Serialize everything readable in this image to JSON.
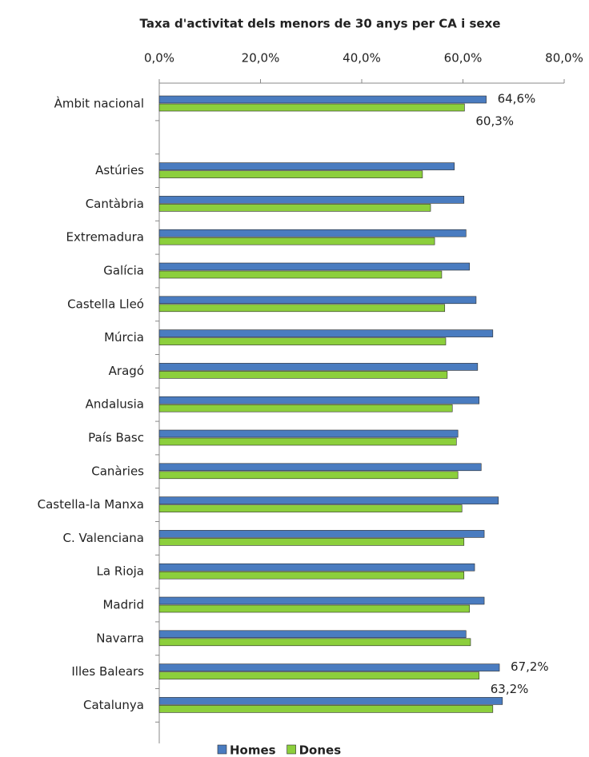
{
  "chart_data": {
    "type": "bar",
    "orientation": "horizontal",
    "title": "Taxa d'activitat dels menors de 30 anys per CA i sexe",
    "categories": [
      "Àmbit nacional",
      null,
      "Astúries",
      "Cantàbria",
      "Extremadura",
      "Galícia",
      "Castella Lleó",
      "Múrcia",
      "Aragó",
      "Andalusia",
      "País Basc",
      "Canàries",
      "Castella-la Manxa",
      "C. Valenciana",
      "La Rioja",
      "Madrid",
      "Navarra",
      "Illes Balears",
      "Catalunya"
    ],
    "series": [
      {
        "name": "Homes",
        "color": "#4a7cc0",
        "values": [
          64.6,
          null,
          58.3,
          60.2,
          60.6,
          61.3,
          62.6,
          65.9,
          62.9,
          63.2,
          59.0,
          63.6,
          67.0,
          64.2,
          62.3,
          64.2,
          60.6,
          67.2,
          67.8
        ],
        "value_labels": [
          "64,6%",
          null,
          null,
          null,
          null,
          null,
          null,
          null,
          null,
          null,
          null,
          null,
          null,
          null,
          null,
          null,
          null,
          "67,2%",
          null
        ]
      },
      {
        "name": "Dones",
        "color": "#8ccf3c",
        "values": [
          60.3,
          null,
          52.0,
          53.6,
          54.4,
          55.8,
          56.4,
          56.6,
          56.9,
          57.9,
          58.7,
          59.0,
          59.8,
          60.2,
          60.2,
          61.3,
          61.5,
          63.2,
          65.9
        ],
        "value_labels": [
          "60,3%",
          null,
          null,
          null,
          null,
          null,
          null,
          null,
          null,
          null,
          null,
          null,
          null,
          null,
          null,
          null,
          null,
          "63,2%",
          null
        ]
      }
    ],
    "xlim": [
      0,
      80
    ],
    "xticks": [
      {
        "value": 0,
        "label": "0,0%"
      },
      {
        "value": 20,
        "label": "20,0%"
      },
      {
        "value": 40,
        "label": "40,0%"
      },
      {
        "value": 60,
        "label": "60,0%"
      },
      {
        "value": 80,
        "label": "80,0%"
      }
    ],
    "legend": "bottom"
  }
}
